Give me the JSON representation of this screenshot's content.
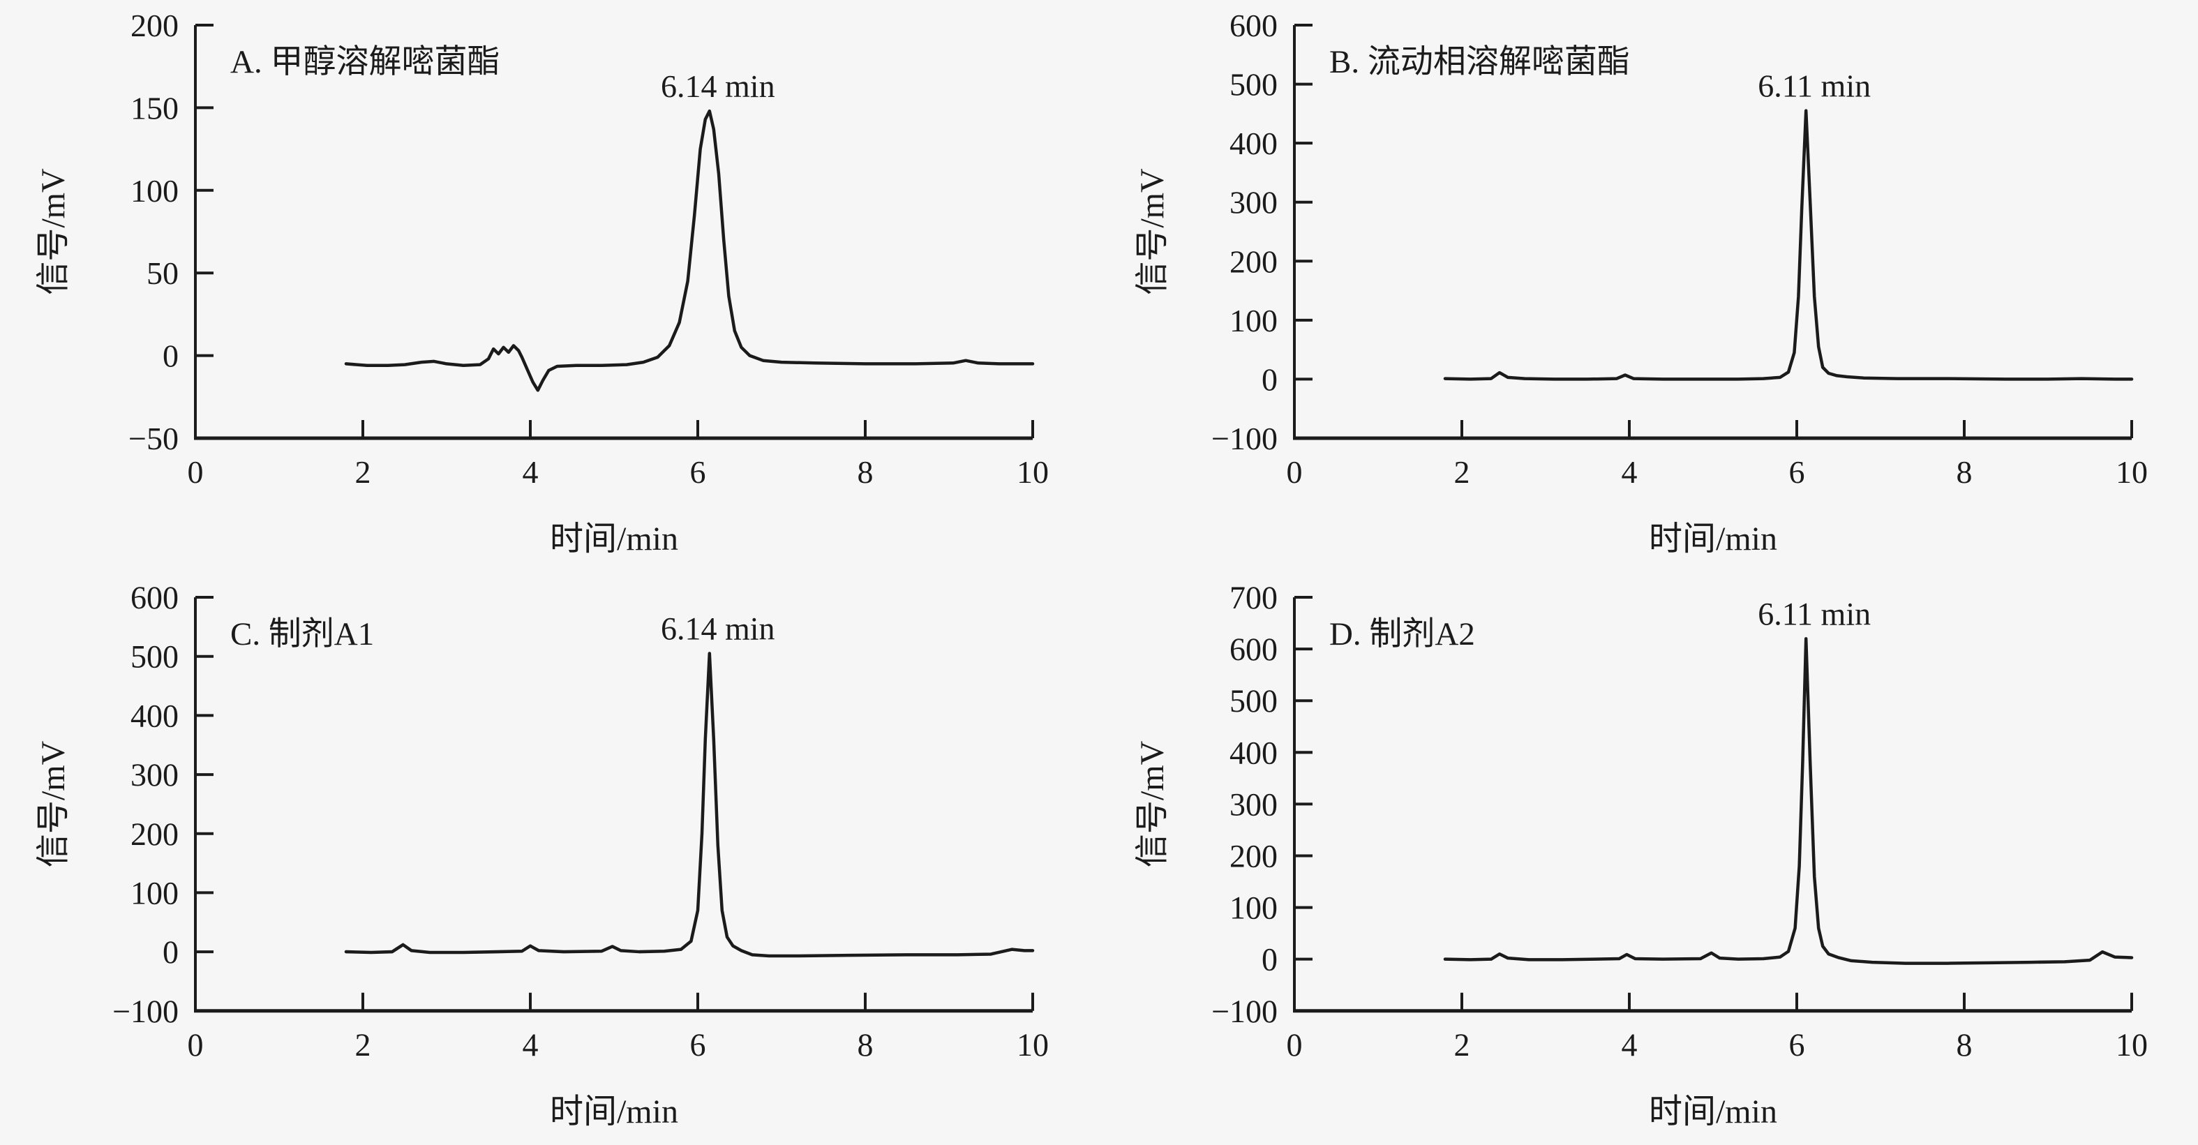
{
  "figure": {
    "background": "#f6f6f6",
    "ink_color": "#1b1b1b",
    "x_axis_label": "时间/min",
    "y_axis_label": "信号/mV"
  },
  "chart_data": [
    {
      "id": "A",
      "type": "line",
      "title": "A. 甲醇溶解嘧菌酯",
      "peak_annotation": "6.14 min",
      "peak_time_min": 6.14,
      "peak_signal_mV": 148,
      "xlabel": "时间/min",
      "ylabel": "信号/mV",
      "xlim": [
        0,
        10
      ],
      "ylim": [
        -50,
        200
      ],
      "xticks": [
        0,
        2,
        4,
        6,
        8,
        10
      ],
      "yticks": [
        -50,
        0,
        50,
        100,
        150,
        200
      ],
      "grid": false,
      "legend": false,
      "series": [
        {
          "name": "signal",
          "points": [
            [
              1.8,
              -5
            ],
            [
              2.05,
              -6
            ],
            [
              2.3,
              -6
            ],
            [
              2.5,
              -5.5
            ],
            [
              2.7,
              -4
            ],
            [
              2.85,
              -3.5
            ],
            [
              3.0,
              -5
            ],
            [
              3.2,
              -6
            ],
            [
              3.4,
              -5.5
            ],
            [
              3.5,
              -2
            ],
            [
              3.56,
              4
            ],
            [
              3.62,
              1
            ],
            [
              3.68,
              5
            ],
            [
              3.74,
              2
            ],
            [
              3.8,
              6
            ],
            [
              3.86,
              3
            ],
            [
              3.9,
              -1
            ],
            [
              3.96,
              -8
            ],
            [
              4.03,
              -16
            ],
            [
              4.09,
              -21
            ],
            [
              4.15,
              -15
            ],
            [
              4.22,
              -9
            ],
            [
              4.32,
              -6.5
            ],
            [
              4.55,
              -6
            ],
            [
              4.85,
              -6
            ],
            [
              5.15,
              -5.5
            ],
            [
              5.35,
              -4
            ],
            [
              5.52,
              -1
            ],
            [
              5.66,
              6
            ],
            [
              5.78,
              20
            ],
            [
              5.88,
              45
            ],
            [
              5.96,
              85
            ],
            [
              6.03,
              125
            ],
            [
              6.09,
              143
            ],
            [
              6.14,
              148
            ],
            [
              6.19,
              137
            ],
            [
              6.25,
              110
            ],
            [
              6.31,
              70
            ],
            [
              6.37,
              36
            ],
            [
              6.44,
              15
            ],
            [
              6.52,
              5
            ],
            [
              6.62,
              0
            ],
            [
              6.78,
              -3
            ],
            [
              7.0,
              -4
            ],
            [
              7.4,
              -4.5
            ],
            [
              8.0,
              -5
            ],
            [
              8.6,
              -5
            ],
            [
              9.05,
              -4.5
            ],
            [
              9.2,
              -3
            ],
            [
              9.35,
              -4.5
            ],
            [
              9.6,
              -5
            ],
            [
              10,
              -5
            ]
          ]
        }
      ]
    },
    {
      "id": "B",
      "type": "line",
      "title": "B. 流动相溶解嘧菌酯",
      "peak_annotation": "6.11 min",
      "peak_time_min": 6.11,
      "peak_signal_mV": 455,
      "xlabel": "时间/min",
      "ylabel": "信号/mV",
      "xlim": [
        0,
        10
      ],
      "ylim": [
        -100,
        600
      ],
      "xticks": [
        0,
        2,
        4,
        6,
        8,
        10
      ],
      "yticks": [
        -100,
        0,
        100,
        200,
        300,
        400,
        500,
        600
      ],
      "grid": false,
      "legend": false,
      "series": [
        {
          "name": "signal",
          "points": [
            [
              1.8,
              1
            ],
            [
              2.1,
              0
            ],
            [
              2.35,
              1
            ],
            [
              2.45,
              11
            ],
            [
              2.55,
              3
            ],
            [
              2.75,
              1
            ],
            [
              3.1,
              0
            ],
            [
              3.5,
              0
            ],
            [
              3.85,
              1
            ],
            [
              3.95,
              7
            ],
            [
              4.05,
              1
            ],
            [
              4.4,
              0
            ],
            [
              4.9,
              0
            ],
            [
              5.3,
              0
            ],
            [
              5.6,
              1
            ],
            [
              5.8,
              3
            ],
            [
              5.9,
              12
            ],
            [
              5.97,
              45
            ],
            [
              6.02,
              140
            ],
            [
              6.06,
              290
            ],
            [
              6.11,
              455
            ],
            [
              6.16,
              300
            ],
            [
              6.21,
              140
            ],
            [
              6.26,
              55
            ],
            [
              6.31,
              20
            ],
            [
              6.38,
              10
            ],
            [
              6.48,
              6
            ],
            [
              6.6,
              4
            ],
            [
              6.8,
              2
            ],
            [
              7.2,
              1
            ],
            [
              7.8,
              1
            ],
            [
              8.5,
              0
            ],
            [
              9.0,
              0
            ],
            [
              9.4,
              1
            ],
            [
              9.8,
              0
            ],
            [
              10,
              0
            ]
          ]
        }
      ]
    },
    {
      "id": "C",
      "type": "line",
      "title": "C. 制剂A1",
      "peak_annotation": "6.14 min",
      "peak_time_min": 6.14,
      "peak_signal_mV": 505,
      "xlabel": "时间/min",
      "ylabel": "信号/mV",
      "xlim": [
        0,
        10
      ],
      "ylim": [
        -100,
        600
      ],
      "xticks": [
        0,
        2,
        4,
        6,
        8,
        10
      ],
      "yticks": [
        -100,
        0,
        100,
        200,
        300,
        400,
        500,
        600
      ],
      "grid": false,
      "legend": false,
      "series": [
        {
          "name": "signal",
          "points": [
            [
              1.8,
              0
            ],
            [
              2.1,
              -1
            ],
            [
              2.35,
              0
            ],
            [
              2.48,
              12
            ],
            [
              2.58,
              2
            ],
            [
              2.8,
              -1
            ],
            [
              3.2,
              -1
            ],
            [
              3.6,
              0
            ],
            [
              3.9,
              1
            ],
            [
              4.0,
              10
            ],
            [
              4.1,
              2
            ],
            [
              4.4,
              0
            ],
            [
              4.85,
              1
            ],
            [
              4.98,
              9
            ],
            [
              5.08,
              2
            ],
            [
              5.3,
              0
            ],
            [
              5.6,
              1
            ],
            [
              5.8,
              4
            ],
            [
              5.92,
              18
            ],
            [
              6.0,
              70
            ],
            [
              6.05,
              200
            ],
            [
              6.09,
              360
            ],
            [
              6.14,
              505
            ],
            [
              6.19,
              360
            ],
            [
              6.24,
              180
            ],
            [
              6.29,
              70
            ],
            [
              6.35,
              25
            ],
            [
              6.42,
              10
            ],
            [
              6.52,
              2
            ],
            [
              6.65,
              -5
            ],
            [
              6.85,
              -7
            ],
            [
              7.2,
              -7
            ],
            [
              7.8,
              -6
            ],
            [
              8.5,
              -5
            ],
            [
              9.1,
              -5
            ],
            [
              9.5,
              -4
            ],
            [
              9.75,
              4
            ],
            [
              9.9,
              2
            ],
            [
              10,
              2
            ]
          ]
        }
      ]
    },
    {
      "id": "D",
      "type": "line",
      "title": "D. 制剂A2",
      "peak_annotation": "6.11 min",
      "peak_time_min": 6.11,
      "peak_signal_mV": 620,
      "xlabel": "时间/min",
      "ylabel": "信号/mV",
      "xlim": [
        0,
        10
      ],
      "ylim": [
        -100,
        700
      ],
      "xticks": [
        0,
        2,
        4,
        6,
        8,
        10
      ],
      "yticks": [
        -100,
        0,
        100,
        200,
        300,
        400,
        500,
        600,
        700
      ],
      "grid": false,
      "legend": false,
      "series": [
        {
          "name": "signal",
          "points": [
            [
              1.8,
              0
            ],
            [
              2.1,
              -1
            ],
            [
              2.35,
              0
            ],
            [
              2.45,
              10
            ],
            [
              2.55,
              2
            ],
            [
              2.8,
              -1
            ],
            [
              3.2,
              -1
            ],
            [
              3.6,
              0
            ],
            [
              3.88,
              1
            ],
            [
              3.97,
              9
            ],
            [
              4.07,
              1
            ],
            [
              4.4,
              0
            ],
            [
              4.85,
              1
            ],
            [
              4.98,
              12
            ],
            [
              5.08,
              2
            ],
            [
              5.3,
              0
            ],
            [
              5.6,
              1
            ],
            [
              5.8,
              4
            ],
            [
              5.9,
              15
            ],
            [
              5.98,
              60
            ],
            [
              6.03,
              180
            ],
            [
              6.07,
              380
            ],
            [
              6.11,
              620
            ],
            [
              6.16,
              380
            ],
            [
              6.21,
              160
            ],
            [
              6.26,
              60
            ],
            [
              6.31,
              25
            ],
            [
              6.38,
              10
            ],
            [
              6.5,
              3
            ],
            [
              6.65,
              -3
            ],
            [
              6.9,
              -6
            ],
            [
              7.3,
              -8
            ],
            [
              7.8,
              -8
            ],
            [
              8.3,
              -7
            ],
            [
              8.8,
              -6
            ],
            [
              9.2,
              -5
            ],
            [
              9.5,
              -2
            ],
            [
              9.65,
              14
            ],
            [
              9.8,
              4
            ],
            [
              10,
              3
            ]
          ]
        }
      ]
    }
  ]
}
